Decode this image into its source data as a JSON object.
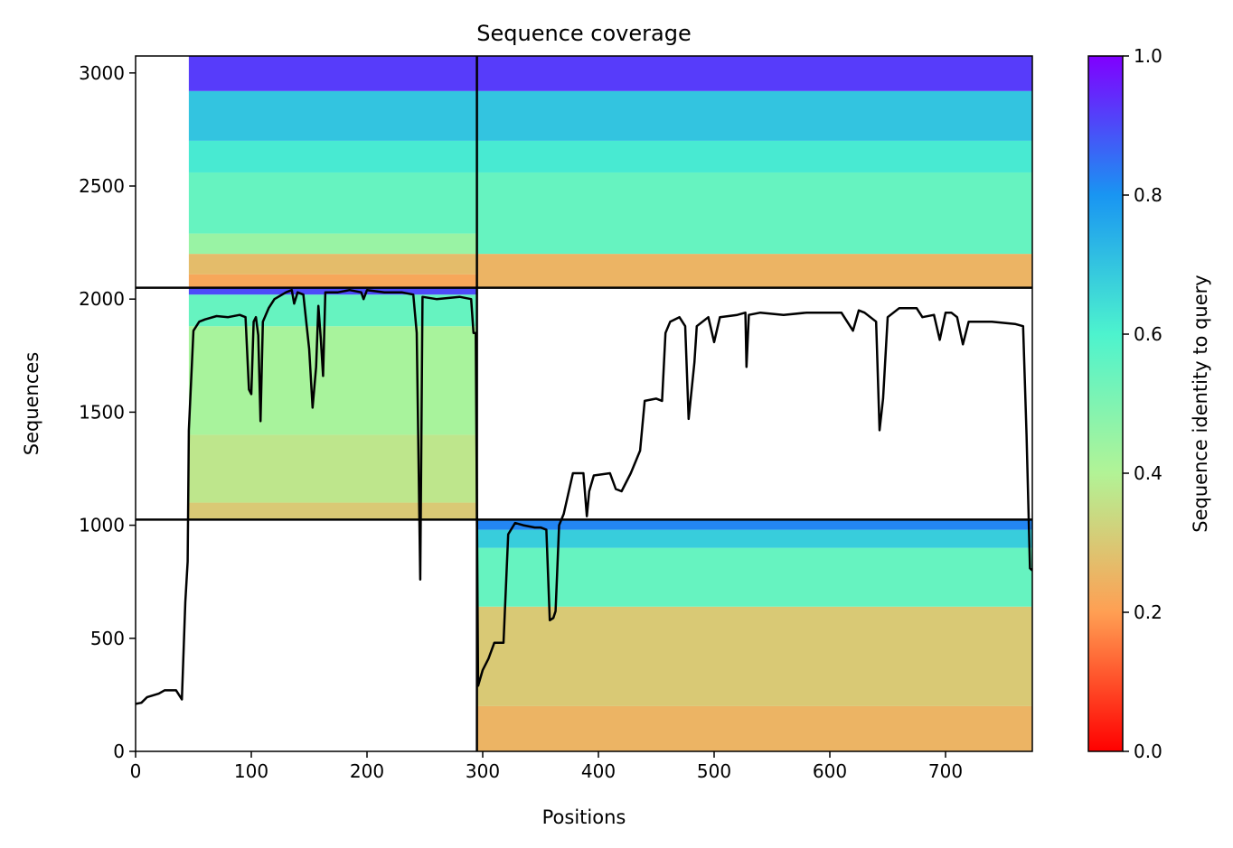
{
  "chart_data": {
    "type": "heatmap",
    "title": "Sequence coverage",
    "xlabel": "Positions",
    "ylabel": "Sequences",
    "xlim": [
      0,
      775
    ],
    "ylim": [
      0,
      3075
    ],
    "xticks": [
      "0",
      "100",
      "200",
      "300",
      "400",
      "500",
      "600",
      "700"
    ],
    "xtick_values": [
      0,
      100,
      200,
      300,
      400,
      500,
      600,
      700
    ],
    "yticks": [
      "0",
      "500",
      "1000",
      "1500",
      "2000",
      "2500",
      "3000"
    ],
    "ytick_values": [
      0,
      500,
      1000,
      1500,
      2000,
      2500,
      3000
    ],
    "grid": false,
    "colorbar": {
      "label": "Sequence identity to query",
      "colormap": "rainbow_r",
      "range": [
        0,
        1
      ],
      "ticks": [
        "0.0",
        "0.2",
        "0.4",
        "0.6",
        "0.8",
        "1.0"
      ],
      "tick_values": [
        0,
        0.2,
        0.4,
        0.6,
        0.8,
        1.0
      ],
      "colors": {
        "0.0": "#ff0000",
        "0.2": "#ff9f53",
        "0.4": "#b2f396",
        "0.6": "#4df3ce",
        "0.8": "#1995f2",
        "1.0": "#8000ff"
      }
    },
    "block_boundaries": {
      "x": [
        295
      ],
      "y": [
        1025,
        2050
      ]
    },
    "blocks": [
      {
        "name": "top-left",
        "x": [
          0,
          295
        ],
        "y": [
          2050,
          3075
        ],
        "coverage_start_x": 46,
        "bands": [
          {
            "y": [
              2050,
              2110
            ],
            "identity": 0.22
          },
          {
            "y": [
              2110,
              2200
            ],
            "identity": 0.27
          },
          {
            "y": [
              2200,
              2290
            ],
            "identity": 0.45
          },
          {
            "y": [
              2290,
              2560
            ],
            "identity": 0.55
          },
          {
            "y": [
              2560,
              2700
            ],
            "identity": 0.62
          },
          {
            "y": [
              2700,
              2920
            ],
            "identity": 0.7
          },
          {
            "y": [
              2920,
              3075
            ],
            "identity": 0.92
          }
        ]
      },
      {
        "name": "top-right",
        "x": [
          295,
          775
        ],
        "y": [
          2050,
          3075
        ],
        "coverage_start_x": 295,
        "bands": [
          {
            "y": [
              2050,
              2200
            ],
            "identity": 0.25
          },
          {
            "y": [
              2200,
              2560
            ],
            "identity": 0.55
          },
          {
            "y": [
              2560,
              2700
            ],
            "identity": 0.62
          },
          {
            "y": [
              2700,
              2920
            ],
            "identity": 0.7
          },
          {
            "y": [
              2920,
              3075
            ],
            "identity": 0.92
          }
        ]
      },
      {
        "name": "middle-left",
        "x": [
          0,
          295
        ],
        "y": [
          1025,
          2050
        ],
        "coverage_start_x": 46,
        "bands": [
          {
            "y": [
              1025,
              1100
            ],
            "identity": 0.3
          },
          {
            "y": [
              1100,
              1400
            ],
            "identity": 0.37
          },
          {
            "y": [
              1400,
              1880
            ],
            "identity": 0.42
          },
          {
            "y": [
              1880,
              2020
            ],
            "identity": 0.55
          },
          {
            "y": [
              2020,
              2050
            ],
            "identity": 0.9
          }
        ]
      },
      {
        "name": "bottom-right",
        "x": [
          295,
          775
        ],
        "y": [
          0,
          1025
        ],
        "coverage_start_x": 295,
        "bands": [
          {
            "y": [
              0,
              200
            ],
            "identity": 0.25
          },
          {
            "y": [
              200,
              640
            ],
            "identity": 0.3
          },
          {
            "y": [
              640,
              900
            ],
            "identity": 0.55
          },
          {
            "y": [
              900,
              980
            ],
            "identity": 0.68
          },
          {
            "y": [
              980,
              1025
            ],
            "identity": 0.82
          }
        ]
      }
    ],
    "coverage_line": {
      "color": "#000000",
      "points": [
        [
          0,
          210
        ],
        [
          5,
          215
        ],
        [
          10,
          240
        ],
        [
          20,
          255
        ],
        [
          25,
          270
        ],
        [
          35,
          270
        ],
        [
          40,
          230
        ],
        [
          43,
          660
        ],
        [
          45,
          840
        ],
        [
          46,
          1420
        ],
        [
          50,
          1860
        ],
        [
          55,
          1900
        ],
        [
          60,
          1910
        ],
        [
          70,
          1925
        ],
        [
          80,
          1920
        ],
        [
          90,
          1930
        ],
        [
          95,
          1920
        ],
        [
          98,
          1600
        ],
        [
          100,
          1580
        ],
        [
          102,
          1900
        ],
        [
          104,
          1920
        ],
        [
          106,
          1840
        ],
        [
          108,
          1460
        ],
        [
          110,
          1900
        ],
        [
          115,
          1960
        ],
        [
          120,
          2000
        ],
        [
          130,
          2030
        ],
        [
          135,
          2040
        ],
        [
          137,
          1980
        ],
        [
          140,
          2030
        ],
        [
          145,
          2020
        ],
        [
          150,
          1780
        ],
        [
          153,
          1520
        ],
        [
          156,
          1700
        ],
        [
          158,
          1970
        ],
        [
          160,
          1830
        ],
        [
          162,
          1660
        ],
        [
          164,
          2030
        ],
        [
          175,
          2030
        ],
        [
          185,
          2040
        ],
        [
          195,
          2030
        ],
        [
          197,
          2000
        ],
        [
          200,
          2040
        ],
        [
          215,
          2030
        ],
        [
          230,
          2030
        ],
        [
          240,
          2020
        ],
        [
          243,
          1850
        ],
        [
          246,
          760
        ],
        [
          248,
          2010
        ],
        [
          260,
          2000
        ],
        [
          280,
          2010
        ],
        [
          290,
          2000
        ],
        [
          292,
          1850
        ],
        [
          294,
          1850
        ],
        [
          296,
          290
        ],
        [
          300,
          360
        ],
        [
          305,
          410
        ],
        [
          310,
          480
        ],
        [
          318,
          480
        ],
        [
          322,
          960
        ],
        [
          328,
          1010
        ],
        [
          335,
          1000
        ],
        [
          345,
          990
        ],
        [
          350,
          990
        ],
        [
          355,
          980
        ],
        [
          358,
          580
        ],
        [
          361,
          590
        ],
        [
          363,
          620
        ],
        [
          366,
          1000
        ],
        [
          370,
          1050
        ],
        [
          378,
          1230
        ],
        [
          387,
          1230
        ],
        [
          390,
          1040
        ],
        [
          392,
          1150
        ],
        [
          396,
          1220
        ],
        [
          410,
          1230
        ],
        [
          415,
          1160
        ],
        [
          420,
          1150
        ],
        [
          428,
          1230
        ],
        [
          436,
          1330
        ],
        [
          440,
          1550
        ],
        [
          450,
          1560
        ],
        [
          455,
          1550
        ],
        [
          458,
          1850
        ],
        [
          462,
          1900
        ],
        [
          470,
          1920
        ],
        [
          475,
          1880
        ],
        [
          478,
          1470
        ],
        [
          483,
          1720
        ],
        [
          485,
          1880
        ],
        [
          495,
          1920
        ],
        [
          500,
          1810
        ],
        [
          505,
          1920
        ],
        [
          520,
          1930
        ],
        [
          527,
          1940
        ],
        [
          528,
          1700
        ],
        [
          530,
          1930
        ],
        [
          540,
          1940
        ],
        [
          560,
          1930
        ],
        [
          580,
          1940
        ],
        [
          610,
          1940
        ],
        [
          620,
          1860
        ],
        [
          625,
          1950
        ],
        [
          630,
          1940
        ],
        [
          640,
          1900
        ],
        [
          643,
          1420
        ],
        [
          646,
          1560
        ],
        [
          650,
          1920
        ],
        [
          660,
          1960
        ],
        [
          675,
          1960
        ],
        [
          680,
          1920
        ],
        [
          690,
          1930
        ],
        [
          695,
          1820
        ],
        [
          700,
          1940
        ],
        [
          705,
          1940
        ],
        [
          710,
          1920
        ],
        [
          715,
          1800
        ],
        [
          720,
          1900
        ],
        [
          740,
          1900
        ],
        [
          760,
          1890
        ],
        [
          767,
          1880
        ],
        [
          770,
          1400
        ],
        [
          773,
          810
        ],
        [
          775,
          800
        ]
      ]
    }
  }
}
